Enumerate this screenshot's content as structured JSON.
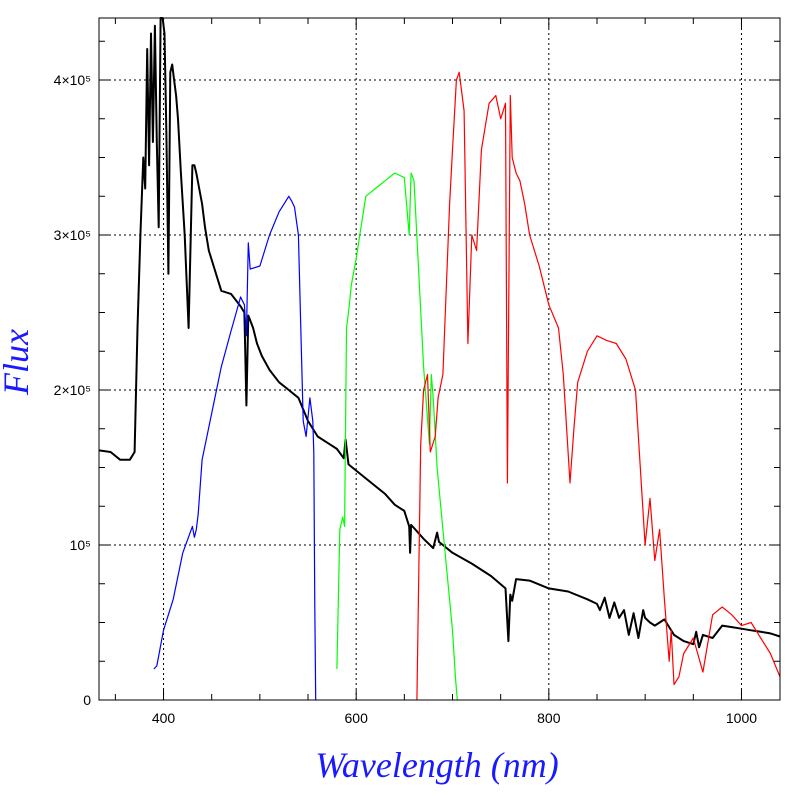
{
  "chart_data": {
    "type": "line",
    "title": "",
    "xlabel": "Wavelength (nm)",
    "ylabel": "Flux",
    "xlim": [
      333,
      1040
    ],
    "ylim": [
      0,
      440000
    ],
    "grid": true,
    "legend": "none",
    "x_ticks": [
      {
        "value": 400,
        "label": "400"
      },
      {
        "value": 600,
        "label": "600"
      },
      {
        "value": 800,
        "label": "800"
      },
      {
        "value": 1000,
        "label": "1000"
      }
    ],
    "y_ticks": [
      {
        "value": 0,
        "label": "0"
      },
      {
        "value": 100000,
        "label": "10⁵"
      },
      {
        "value": 200000,
        "label": "2×10⁵"
      },
      {
        "value": 300000,
        "label": "3×10⁵"
      },
      {
        "value": 400000,
        "label": "4×10⁵"
      }
    ],
    "series": [
      {
        "color": "#000000",
        "x": [
          333,
          345,
          355,
          365,
          370,
          373,
          376,
          379,
          381,
          383,
          385,
          387,
          389,
          391,
          393,
          395,
          397,
          399,
          401,
          403,
          405,
          407,
          409,
          411,
          413,
          415,
          418,
          422,
          426,
          430,
          432,
          434,
          437,
          440,
          443,
          447,
          452,
          460,
          470,
          480,
          484,
          486,
          488,
          490,
          493,
          497,
          502,
          510,
          520,
          530,
          540,
          550,
          560,
          570,
          580,
          587,
          589,
          592,
          600,
          610,
          620,
          630,
          640,
          650,
          655,
          656,
          657,
          660,
          670,
          680,
          684,
          686,
          690,
          700,
          720,
          740,
          755,
          758,
          760,
          762,
          766,
          780,
          800,
          820,
          840,
          850,
          853,
          858,
          863,
          868,
          873,
          878,
          883,
          888,
          893,
          898,
          900,
          905,
          910,
          920,
          930,
          940,
          950,
          953,
          956,
          960,
          970,
          980,
          990,
          1000,
          1010,
          1020,
          1030,
          1040
        ],
        "y": [
          161000,
          160000,
          155000,
          155000,
          160000,
          240000,
          300000,
          350000,
          330000,
          420000,
          345000,
          430000,
          360000,
          435000,
          360000,
          305000,
          440000,
          440000,
          430000,
          365000,
          275000,
          405000,
          410000,
          400000,
          390000,
          375000,
          340000,
          300000,
          240000,
          345000,
          345000,
          340000,
          330000,
          320000,
          305000,
          290000,
          280000,
          264000,
          262000,
          254000,
          250000,
          190000,
          248000,
          245000,
          240000,
          230000,
          222000,
          213000,
          205000,
          200000,
          195000,
          180000,
          170000,
          166000,
          162000,
          156000,
          168000,
          152000,
          148000,
          143000,
          138000,
          133000,
          126000,
          122000,
          112000,
          95000,
          113000,
          111000,
          104000,
          98000,
          108000,
          102000,
          100000,
          95000,
          88000,
          80000,
          72000,
          38000,
          68000,
          64000,
          78000,
          77000,
          72000,
          70000,
          65000,
          62000,
          58000,
          66000,
          53000,
          63000,
          53000,
          58000,
          42000,
          56000,
          40000,
          58000,
          53000,
          50000,
          48000,
          52000,
          42000,
          38000,
          36000,
          44000,
          34000,
          42000,
          40000,
          48000,
          47000,
          46000,
          45000,
          44000,
          43000,
          41000
        ]
      },
      {
        "color": "#0000ff",
        "x": [
          390,
          393,
          400,
          410,
          420,
          430,
          432,
          434,
          436,
          440,
          450,
          460,
          470,
          480,
          484,
          486,
          488,
          490,
          500,
          510,
          520,
          530,
          533,
          536,
          540,
          545,
          548,
          552,
          555,
          556,
          557,
          558
        ],
        "y": [
          20000,
          22000,
          45000,
          65000,
          95000,
          112000,
          105000,
          110000,
          120000,
          155000,
          185000,
          215000,
          238000,
          260000,
          255000,
          235000,
          295000,
          278000,
          280000,
          300000,
          315000,
          325000,
          322000,
          318000,
          300000,
          180000,
          170000,
          195000,
          180000,
          160000,
          60000,
          0
        ]
      },
      {
        "color": "#00ff00",
        "x": [
          580,
          583,
          586,
          588,
          590,
          592,
          595,
          600,
          610,
          620,
          630,
          640,
          650,
          655,
          657,
          660,
          670,
          676,
          678,
          680,
          684,
          690,
          700,
          703,
          705
        ],
        "y": [
          20000,
          110000,
          118000,
          112000,
          240000,
          250000,
          268000,
          285000,
          325000,
          330000,
          335000,
          340000,
          337000,
          300000,
          340000,
          335000,
          215000,
          165000,
          210000,
          195000,
          150000,
          110000,
          45000,
          15000,
          0
        ]
      },
      {
        "color": "#ff0000",
        "x": [
          663,
          667,
          670,
          674,
          677,
          682,
          685,
          690,
          697,
          700,
          704,
          707,
          712,
          716,
          720,
          725,
          730,
          738,
          745,
          750,
          755,
          757,
          760,
          762,
          766,
          770,
          775,
          780,
          790,
          800,
          810,
          815,
          822,
          826,
          830,
          840,
          850,
          860,
          870,
          880,
          890,
          895,
          900,
          905,
          910,
          915,
          920,
          925,
          927,
          930,
          935,
          940,
          950,
          960,
          970,
          980,
          990,
          1000,
          1010,
          1020,
          1030,
          1040
        ],
        "y": [
          0,
          165000,
          200000,
          210000,
          160000,
          170000,
          195000,
          210000,
          320000,
          355000,
          400000,
          405000,
          380000,
          230000,
          300000,
          290000,
          355000,
          385000,
          390000,
          375000,
          385000,
          140000,
          390000,
          350000,
          340000,
          335000,
          320000,
          300000,
          280000,
          255000,
          240000,
          210000,
          140000,
          175000,
          205000,
          225000,
          235000,
          232000,
          230000,
          220000,
          200000,
          150000,
          100000,
          130000,
          90000,
          110000,
          65000,
          25000,
          45000,
          10000,
          15000,
          30000,
          40000,
          18000,
          55000,
          60000,
          55000,
          48000,
          50000,
          40000,
          30000,
          15000
        ]
      }
    ]
  }
}
